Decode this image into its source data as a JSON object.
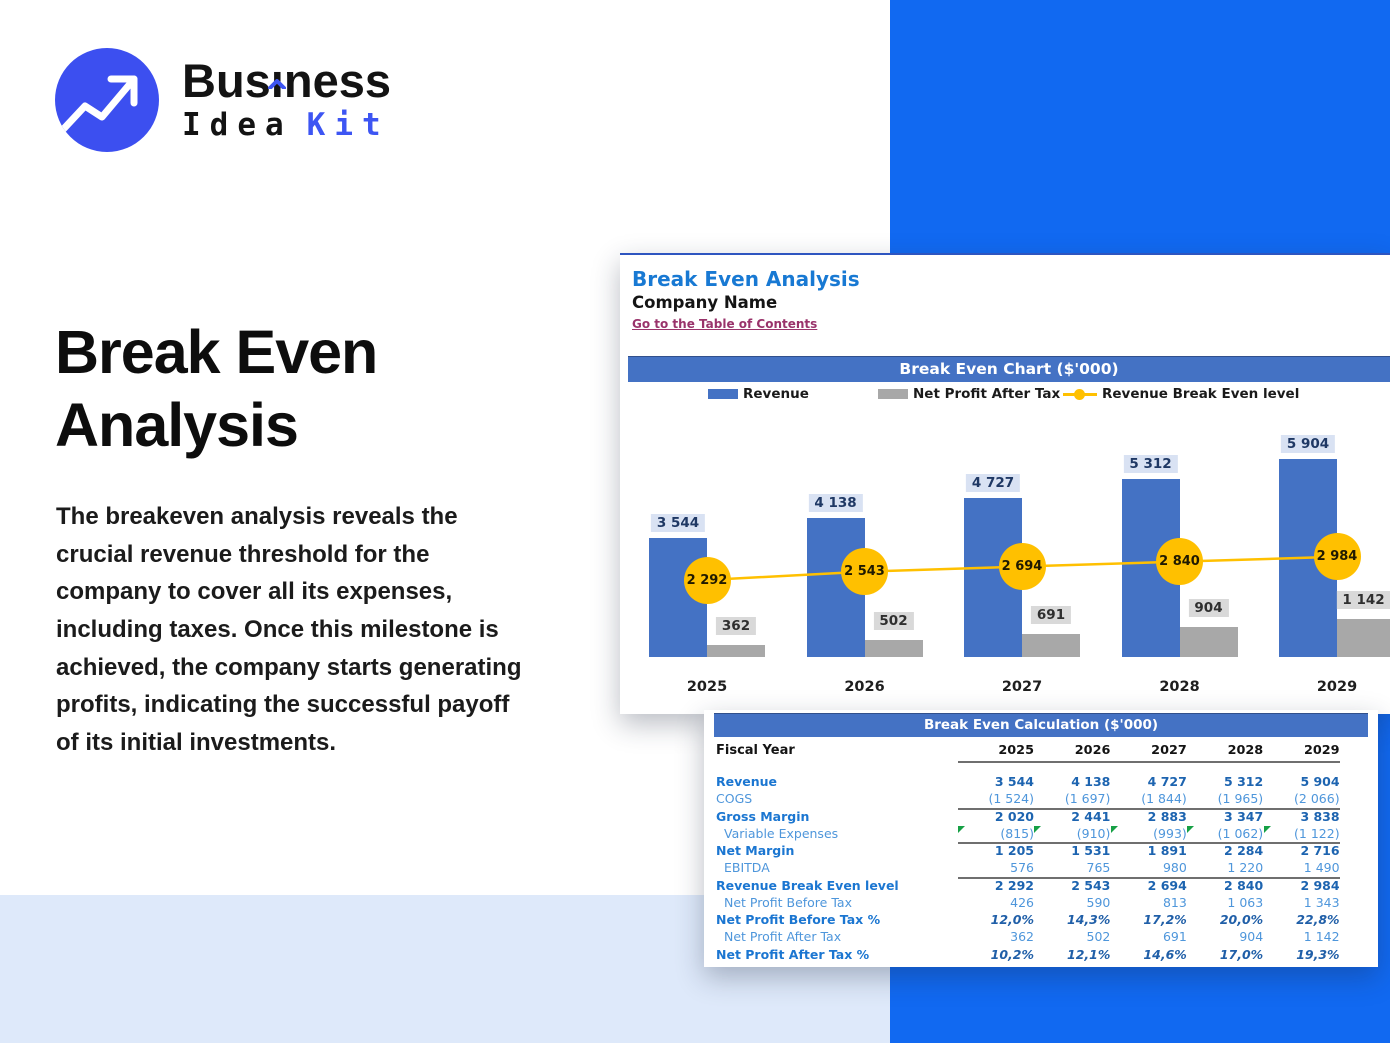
{
  "logo": {
    "word1_pre": "Bus",
    "word1_i": "ı",
    "word1_post": "ness",
    "word2_black": "Idea",
    "word2_blue": "Kit",
    "circle_color": "#3C4FF0",
    "accent_color": "#3D55F3"
  },
  "hero": {
    "title_line1": "Break Even",
    "title_line2": "Analysis",
    "paragraph": "The breakeven analysis reveals the crucial revenue threshold for the company to cover all its expenses, including taxes. Once this milestone is achieved, the company starts generating profits, indicating the successful payoff of its initial investments."
  },
  "sheet": {
    "title": "Break Even Analysis",
    "company": "Company Name",
    "toc_link": "Go to the Table of Contents",
    "chart_header": "Break Even Chart ($'000)",
    "legend": [
      {
        "label": "Revenue",
        "color": "#4472C4"
      },
      {
        "label": "Net Profit After Tax",
        "color": "#A8A8A8"
      },
      {
        "label": "Revenue Break Even level",
        "color": "#FFC000"
      }
    ]
  },
  "chart_data": {
    "type": "bar",
    "subtype": "bar+line combo",
    "title": "Break Even Chart ($'000)",
    "categories": [
      "2025",
      "2026",
      "2027",
      "2028",
      "2029"
    ],
    "series": [
      {
        "name": "Revenue",
        "type": "bar",
        "color": "#4472C4",
        "values": [
          3544,
          4138,
          4727,
          5312,
          5904
        ],
        "labels": [
          "3 544",
          "4 138",
          "4 727",
          "5 312",
          "5 904"
        ]
      },
      {
        "name": "Net Profit After Tax",
        "type": "bar",
        "color": "#A8A8A8",
        "values": [
          362,
          502,
          691,
          904,
          1142
        ],
        "labels": [
          "362",
          "502",
          "691",
          "904",
          "1 142"
        ]
      },
      {
        "name": "Revenue Break Even level",
        "type": "line",
        "color": "#FFC000",
        "values": [
          2292,
          2543,
          2694,
          2840,
          2984
        ],
        "labels": [
          "2 292",
          "2 543",
          "2 694",
          "2 840",
          "2 984"
        ]
      }
    ],
    "ylim": [
      0,
      6200
    ],
    "gridlines": false,
    "legend_position": "top",
    "data_labels": true
  },
  "calc_table": {
    "header": "Break Even Calculation ($'000)",
    "fiscal_year_label": "Fiscal Year",
    "years": [
      "2025",
      "2026",
      "2027",
      "2028",
      "2029"
    ],
    "rows": [
      {
        "label": "Revenue",
        "style": "bold",
        "indent": false,
        "line_below": false,
        "markers": false,
        "values": [
          "3 544",
          "4 138",
          "4 727",
          "5 312",
          "5 904"
        ]
      },
      {
        "label": "COGS",
        "style": "light",
        "indent": false,
        "line_below": true,
        "markers": false,
        "values": [
          "(1 524)",
          "(1 697)",
          "(1 844)",
          "(1 965)",
          "(2 066)"
        ]
      },
      {
        "label": "Gross Margin",
        "style": "bold",
        "indent": false,
        "line_below": false,
        "markers": false,
        "values": [
          "2 020",
          "2 441",
          "2 883",
          "3 347",
          "3 838"
        ]
      },
      {
        "label": "Variable Expenses",
        "style": "light",
        "indent": true,
        "line_below": true,
        "markers": true,
        "values": [
          "(815)",
          "(910)",
          "(993)",
          "(1 062)",
          "(1 122)"
        ]
      },
      {
        "label": "Net Margin",
        "style": "bold",
        "indent": false,
        "line_below": false,
        "markers": false,
        "values": [
          "1 205",
          "1 531",
          "1 891",
          "2 284",
          "2 716"
        ]
      },
      {
        "label": "EBITDA",
        "style": "light",
        "indent": true,
        "line_below": true,
        "markers": false,
        "values": [
          "576",
          "765",
          "980",
          "1 220",
          "1 490"
        ]
      },
      {
        "label": "Revenue Break Even level",
        "style": "bold",
        "indent": false,
        "line_below": false,
        "markers": false,
        "values": [
          "2 292",
          "2 543",
          "2 694",
          "2 840",
          "2 984"
        ]
      },
      {
        "label": "Net Profit Before Tax",
        "style": "light",
        "indent": true,
        "line_below": false,
        "markers": false,
        "values": [
          "426",
          "590",
          "813",
          "1 063",
          "1 343"
        ]
      },
      {
        "label": "Net Profit Before Tax %",
        "style": "pct",
        "indent": false,
        "line_below": false,
        "markers": false,
        "values": [
          "12,0%",
          "14,3%",
          "17,2%",
          "20,0%",
          "22,8%"
        ]
      },
      {
        "label": "Net Profit After Tax",
        "style": "light",
        "indent": true,
        "line_below": false,
        "markers": false,
        "values": [
          "362",
          "502",
          "691",
          "904",
          "1 142"
        ]
      },
      {
        "label": "Net Profit After Tax %",
        "style": "pct",
        "indent": false,
        "line_below": false,
        "markers": false,
        "values": [
          "10,2%",
          "12,1%",
          "14,6%",
          "17,0%",
          "19,3%"
        ]
      }
    ]
  },
  "colors": {
    "bright_blue_panel": "#1169F1",
    "light_blue_band": "#DEE9FA",
    "excel_header_blue": "#4472C4",
    "revenue_bar": "#4472C4",
    "net_profit_bar": "#A8A8A8",
    "break_even_yellow": "#FFC000",
    "sheet_title_blue": "#1879D3",
    "link_maroon": "#99336B",
    "table_bold_blue": "#1B76D1",
    "table_light_blue": "#4E96DB",
    "comment_marker_green": "#16A045"
  }
}
